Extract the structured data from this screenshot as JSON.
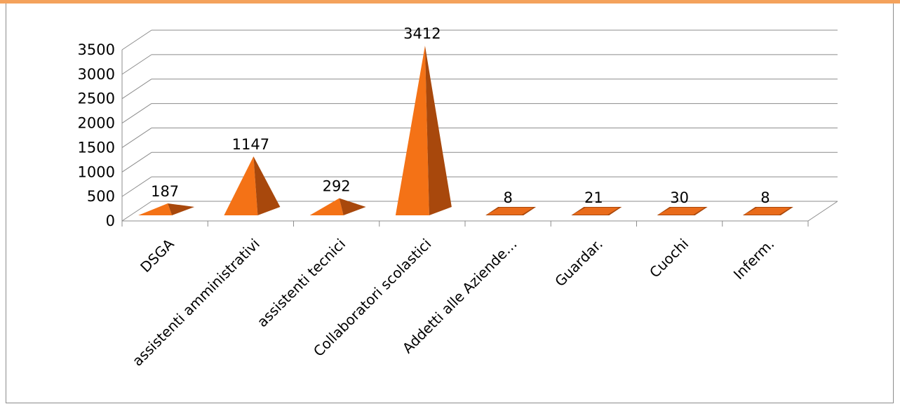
{
  "chart_data": {
    "type": "bar",
    "style": "3d-pyramid",
    "categories": [
      "DSGA",
      "assistenti amministrativi",
      "assistenti tecnici",
      "Collaboratori scolastici",
      "Addetti alle Aziende…",
      "Guardar.",
      "Cuochi",
      "Inferm."
    ],
    "values": [
      187,
      1147,
      292,
      3412,
      8,
      21,
      30,
      8
    ],
    "data_labels": [
      "187",
      "1147",
      "292",
      "3412",
      "8",
      "21",
      "30",
      "8"
    ],
    "y_ticks": [
      "0",
      "500",
      "1000",
      "1500",
      "2000",
      "2500",
      "3000",
      "3500"
    ],
    "ylim": [
      0,
      3500
    ],
    "grid": true,
    "legend": "none",
    "colors": {
      "bar_front": "#f47216",
      "bar_side": "#a8480c",
      "bar_top": "#e96b1a",
      "grid": "#8c8c8c",
      "accent_rule": "#f4a25c"
    }
  }
}
